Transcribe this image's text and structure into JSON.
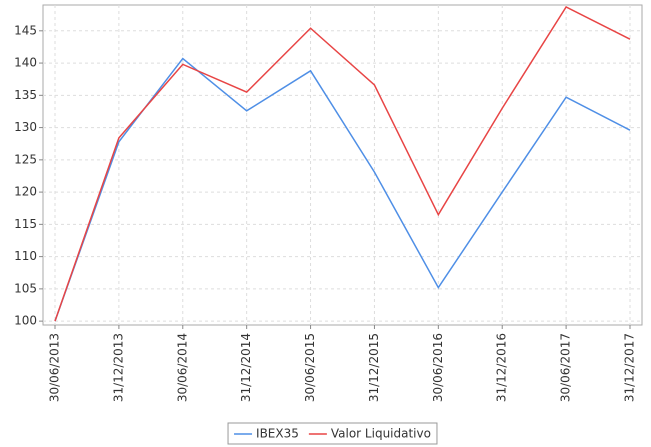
{
  "chart_data": {
    "type": "line",
    "categories": [
      "30/06/2013",
      "31/12/2013",
      "30/06/2014",
      "31/12/2014",
      "30/06/2015",
      "31/12/2015",
      "30/06/2016",
      "31/12/2016",
      "30/06/2017",
      "31/12/2017"
    ],
    "series": [
      {
        "name": "IBEX35",
        "color": "#4f8fe6",
        "values": [
          100,
          127.8,
          140.7,
          132.6,
          138.8,
          123.1,
          105.2,
          120,
          134.7,
          129.6
        ]
      },
      {
        "name": "Valor Liquidativo",
        "color": "#e84545",
        "values": [
          100,
          128.4,
          139.8,
          135.5,
          145.4,
          136.6,
          116.5,
          133,
          148.7,
          143.7
        ]
      }
    ],
    "ylim": [
      99.4,
      149
    ],
    "yticks": [
      100,
      105,
      110,
      115,
      120,
      125,
      130,
      135,
      140,
      145
    ],
    "grid": true,
    "legend": "bottom"
  }
}
